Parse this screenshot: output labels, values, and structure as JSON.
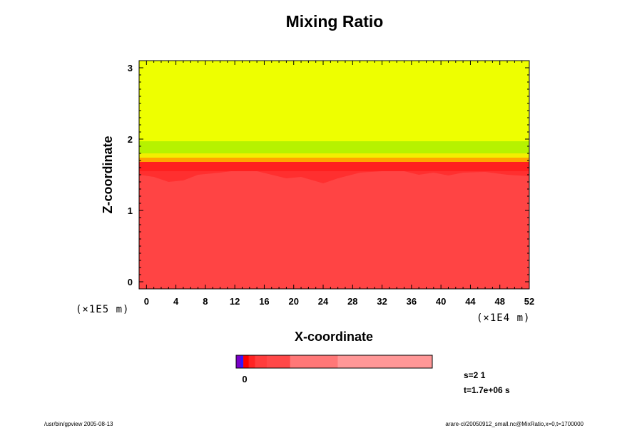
{
  "chart_data": {
    "type": "heatmap",
    "title": "Mixing Ratio",
    "xlabel": "X-coordinate",
    "ylabel": "Z-coordinate",
    "x_unit": "(×1E4 m)",
    "y_unit": "(×1E5 m)",
    "xlim": [
      -1,
      52
    ],
    "ylim": [
      -0.1,
      3.1
    ],
    "x_ticks": [
      0,
      4,
      8,
      12,
      16,
      20,
      24,
      28,
      32,
      36,
      40,
      44,
      48,
      52
    ],
    "y_ticks": [
      0,
      1,
      2,
      3
    ],
    "minor_tick_step_x": 1,
    "minor_tick_step_y": 0.1,
    "layers": [
      {
        "name": "lower",
        "z_from": -0.1,
        "z_to": 1.55,
        "color": "#ff4444"
      },
      {
        "name": "interface-red",
        "z_from": 1.55,
        "z_to": 1.68,
        "color": "#ff1f1f"
      },
      {
        "name": "interface-orange",
        "z_from": 1.68,
        "z_to": 1.74,
        "color": "#ffa600"
      },
      {
        "name": "interface-yellow",
        "z_from": 1.74,
        "z_to": 1.8,
        "color": "#f2ef00"
      },
      {
        "name": "interface-green",
        "z_from": 1.8,
        "z_to": 1.97,
        "color": "#b6f200"
      },
      {
        "name": "upper",
        "z_from": 1.97,
        "z_to": 3.1,
        "color": "#eeff00"
      }
    ],
    "interface_bottom": [
      {
        "x": -1,
        "z": 1.5
      },
      {
        "x": 1,
        "z": 1.47
      },
      {
        "x": 3,
        "z": 1.4
      },
      {
        "x": 5,
        "z": 1.42
      },
      {
        "x": 7,
        "z": 1.5
      },
      {
        "x": 10,
        "z": 1.53
      },
      {
        "x": 13,
        "z": 1.57
      },
      {
        "x": 15,
        "z": 1.55
      },
      {
        "x": 17,
        "z": 1.5
      },
      {
        "x": 19,
        "z": 1.45
      },
      {
        "x": 21,
        "z": 1.47
      },
      {
        "x": 24,
        "z": 1.38
      },
      {
        "x": 26,
        "z": 1.45
      },
      {
        "x": 29,
        "z": 1.53
      },
      {
        "x": 32,
        "z": 1.55
      },
      {
        "x": 35,
        "z": 1.55
      },
      {
        "x": 37,
        "z": 1.5
      },
      {
        "x": 39,
        "z": 1.53
      },
      {
        "x": 41,
        "z": 1.49
      },
      {
        "x": 43,
        "z": 1.53
      },
      {
        "x": 46,
        "z": 1.54
      },
      {
        "x": 49,
        "z": 1.5
      },
      {
        "x": 52,
        "z": 1.48
      }
    ]
  },
  "colorbar": {
    "tick_label": "0",
    "segments": [
      {
        "color": "#7a00c8",
        "weight": 1
      },
      {
        "color": "#3218ff",
        "weight": 0.6
      },
      {
        "color": "#ff0000",
        "weight": 1.2
      },
      {
        "color": "#ff2323",
        "weight": 1.4
      },
      {
        "color": "#ff3c3c",
        "weight": 2.6
      },
      {
        "color": "#ff4848",
        "weight": 5.2
      },
      {
        "color": "#ff7777",
        "weight": 10.6
      },
      {
        "color": "#ff9797",
        "weight": 21
      }
    ]
  },
  "info": {
    "s_label": "s=2 1",
    "t_label": "t=1.7e+06 s"
  },
  "footer": {
    "left": "/usr/bin/gpview 2005-08-13",
    "right": "arare-cl/20050912_small.nc@MixRatio,x=0,t=1700000"
  },
  "colors": {
    "axis": "#000000",
    "background": "#ffffff"
  }
}
